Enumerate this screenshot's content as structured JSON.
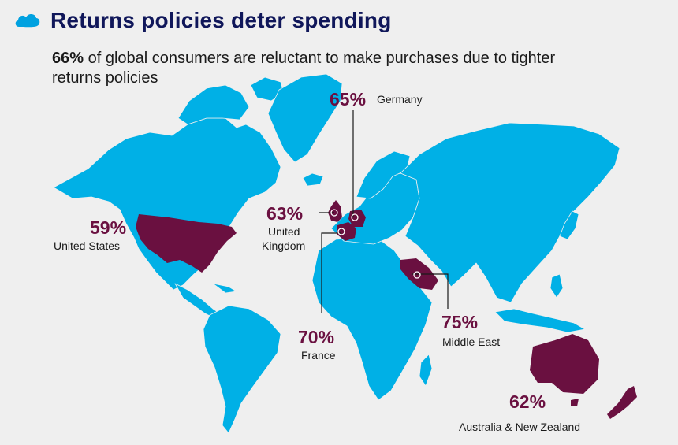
{
  "header": {
    "title": "Returns policies deter spending",
    "icon": "cloud-icon",
    "icon_color": "#00a1e0"
  },
  "subtitle": {
    "highlight": "66%",
    "text": " of global consumers are reluctant to make purchases due to tighter returns policies"
  },
  "colors": {
    "land": "#00b0e6",
    "highlight": "#6a1040",
    "title": "#10175a",
    "background": "#efefef"
  },
  "regions": {
    "united_states": {
      "value": "59%",
      "label": "United States"
    },
    "united_kingdom": {
      "value": "63%",
      "label_line1": "United",
      "label_line2": "Kingdom"
    },
    "germany": {
      "value": "65%",
      "label": "Germany"
    },
    "france": {
      "value": "70%",
      "label": "France"
    },
    "middle_east": {
      "value": "75%",
      "label": "Middle East"
    },
    "australia_nz": {
      "value": "62%",
      "label": "Australia & New Zealand"
    }
  }
}
